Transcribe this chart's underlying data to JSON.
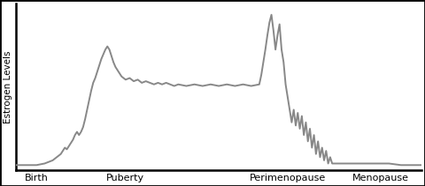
{
  "title": "",
  "ylabel": "Estrogen Levels",
  "xlabel": "",
  "xtick_labels": [
    "Birth",
    "Puberty",
    "Perimenopause",
    "Menopause"
  ],
  "xtick_positions": [
    0.05,
    0.27,
    0.67,
    0.9
  ],
  "line_color": "#888888",
  "line_width": 1.4,
  "background_color": "#ffffff",
  "ylim": [
    0,
    1.05
  ],
  "xlim": [
    0.0,
    1.0
  ],
  "curve_x": [
    0.0,
    0.02,
    0.04,
    0.05,
    0.06,
    0.07,
    0.08,
    0.09,
    0.1,
    0.11,
    0.115,
    0.12,
    0.125,
    0.13,
    0.135,
    0.14,
    0.145,
    0.15,
    0.155,
    0.16,
    0.165,
    0.17,
    0.175,
    0.18,
    0.185,
    0.19,
    0.195,
    0.2,
    0.205,
    0.21,
    0.215,
    0.22,
    0.225,
    0.23,
    0.235,
    0.24,
    0.245,
    0.25,
    0.255,
    0.26,
    0.27,
    0.28,
    0.29,
    0.3,
    0.31,
    0.32,
    0.33,
    0.34,
    0.35,
    0.36,
    0.37,
    0.38,
    0.39,
    0.4,
    0.42,
    0.44,
    0.46,
    0.48,
    0.5,
    0.52,
    0.54,
    0.56,
    0.58,
    0.6,
    0.605,
    0.61,
    0.615,
    0.62,
    0.625,
    0.63,
    0.635,
    0.64,
    0.645,
    0.65,
    0.655,
    0.66,
    0.665,
    0.67,
    0.675,
    0.68,
    0.685,
    0.69,
    0.695,
    0.7,
    0.705,
    0.71,
    0.715,
    0.72,
    0.725,
    0.73,
    0.735,
    0.74,
    0.745,
    0.75,
    0.755,
    0.76,
    0.765,
    0.77,
    0.775,
    0.78,
    0.79,
    0.8,
    0.82,
    0.84,
    0.86,
    0.88,
    0.9,
    0.92,
    0.95,
    1.0
  ],
  "curve_y": [
    0.03,
    0.03,
    0.03,
    0.03,
    0.035,
    0.04,
    0.05,
    0.06,
    0.08,
    0.1,
    0.12,
    0.14,
    0.13,
    0.15,
    0.17,
    0.19,
    0.22,
    0.24,
    0.22,
    0.24,
    0.27,
    0.32,
    0.38,
    0.44,
    0.5,
    0.55,
    0.58,
    0.62,
    0.66,
    0.7,
    0.73,
    0.76,
    0.78,
    0.76,
    0.72,
    0.68,
    0.65,
    0.63,
    0.61,
    0.59,
    0.57,
    0.58,
    0.56,
    0.57,
    0.55,
    0.56,
    0.55,
    0.54,
    0.55,
    0.54,
    0.55,
    0.54,
    0.53,
    0.54,
    0.53,
    0.54,
    0.53,
    0.54,
    0.53,
    0.54,
    0.53,
    0.54,
    0.53,
    0.54,
    0.6,
    0.68,
    0.76,
    0.85,
    0.93,
    0.98,
    0.88,
    0.76,
    0.85,
    0.92,
    0.76,
    0.68,
    0.54,
    0.46,
    0.38,
    0.3,
    0.38,
    0.28,
    0.36,
    0.26,
    0.34,
    0.22,
    0.3,
    0.18,
    0.26,
    0.14,
    0.22,
    0.1,
    0.18,
    0.08,
    0.14,
    0.06,
    0.12,
    0.04,
    0.08,
    0.04,
    0.04,
    0.04,
    0.04,
    0.04,
    0.04,
    0.04,
    0.04,
    0.04,
    0.03,
    0.03
  ]
}
